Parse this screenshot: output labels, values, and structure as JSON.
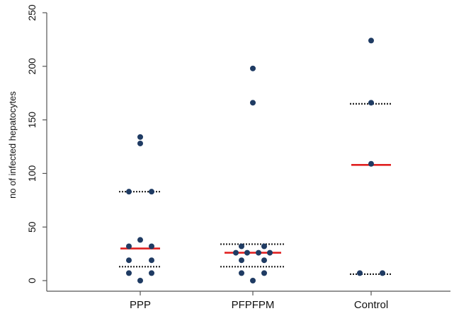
{
  "chart_data": {
    "type": "scatter",
    "ylabel": "no of infected hepatocytes",
    "xlabel": "",
    "ylim": [
      0,
      250
    ],
    "yticks": [
      0,
      50,
      100,
      150,
      200,
      250
    ],
    "categories": [
      "PPP",
      "PFPFPM",
      "Control"
    ],
    "series": [
      {
        "category": "PPP",
        "points": [
          134,
          128,
          83,
          83,
          38,
          32,
          32,
          19,
          19,
          7,
          7,
          0
        ],
        "median": 30,
        "q1": 13,
        "q3": 83
      },
      {
        "category": "PFPFPM",
        "points": [
          198,
          166,
          32,
          32,
          26,
          26,
          26,
          26,
          19,
          19,
          7,
          7,
          0
        ],
        "median": 26,
        "q1": 13,
        "q3": 34
      },
      {
        "category": "Control",
        "points": [
          224,
          166,
          109,
          7,
          7
        ],
        "median": 108,
        "q1": 6,
        "q3": 165
      }
    ],
    "colors": {
      "point": "#1f3b63",
      "median": "#e02020",
      "quartile": "#222222",
      "axis": "#555555"
    },
    "grid": false
  }
}
